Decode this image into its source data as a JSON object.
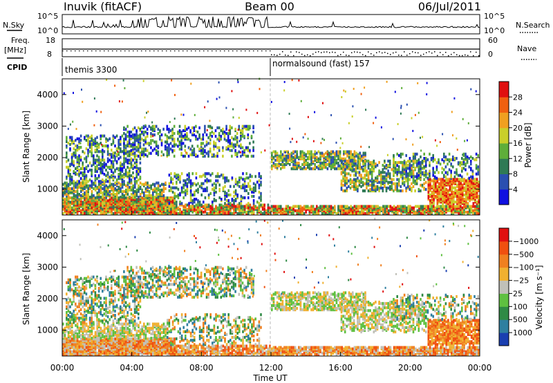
{
  "header": {
    "station": "Inuvik (fitACF)",
    "beam": "Beam 00",
    "date": "06/Jul/2011"
  },
  "top_panels": {
    "nsky_label": "N.Sky",
    "nsearch_label": "N.Search",
    "nsky_ticks": [
      "10^5",
      "10^0"
    ],
    "nsearch_ticks": [
      "10^5",
      "10^0"
    ],
    "freq_label": "Freq.",
    "freq_unit": "[MHz]",
    "freq_ticks": [
      "18",
      "8"
    ],
    "nave_label": "Nave",
    "nave_ticks": [
      "60",
      "0"
    ],
    "cpid_label": "CPID",
    "cpid_modes": [
      {
        "name": "themis 3300"
      },
      {
        "name": "normalsound (fast) 157"
      }
    ]
  },
  "chart_data": [
    {
      "type": "heatmap",
      "title": "",
      "xlabel": "Time UT",
      "ylabel": "Slant Range [km]",
      "x_ticks": [
        "00:00",
        "04:00",
        "08:00",
        "12:00",
        "16:00",
        "20:00",
        "00:00"
      ],
      "x_range_hours": [
        0,
        24
      ],
      "y_ticks": [
        1000,
        2000,
        3000,
        4000
      ],
      "ylim": [
        180,
        4500
      ],
      "colorbar": {
        "label": "Power [dB]",
        "ticks": [
          "4",
          "8",
          "12",
          "16",
          "20",
          "24",
          "28"
        ],
        "colors": [
          "#1010e0",
          "#2a4fb0",
          "#2f7a55",
          "#5fae3a",
          "#c9cf2a",
          "#f0a020",
          "#f06010",
          "#e01010"
        ]
      }
    },
    {
      "type": "heatmap",
      "title": "",
      "xlabel": "Time UT",
      "ylabel": "Slant Range [km]",
      "x_ticks": [
        "00:00",
        "04:00",
        "08:00",
        "12:00",
        "16:00",
        "20:00",
        "00:00"
      ],
      "x_range_hours": [
        0,
        24
      ],
      "y_ticks": [
        1000,
        2000,
        3000,
        4000
      ],
      "ylim": [
        180,
        4500
      ],
      "colorbar": {
        "label": "Velocity [m s⁻¹]",
        "ticks": [
          "1000",
          "500",
          "100",
          "25",
          "−25",
          "−100",
          "−500",
          "−1000"
        ],
        "colors": [
          "#1a3fb0",
          "#2f7fa0",
          "#2f8a45",
          "#5fc040",
          "#c0c0b8",
          "#f0b030",
          "#f08020",
          "#f05010",
          "#e01010"
        ]
      }
    }
  ]
}
